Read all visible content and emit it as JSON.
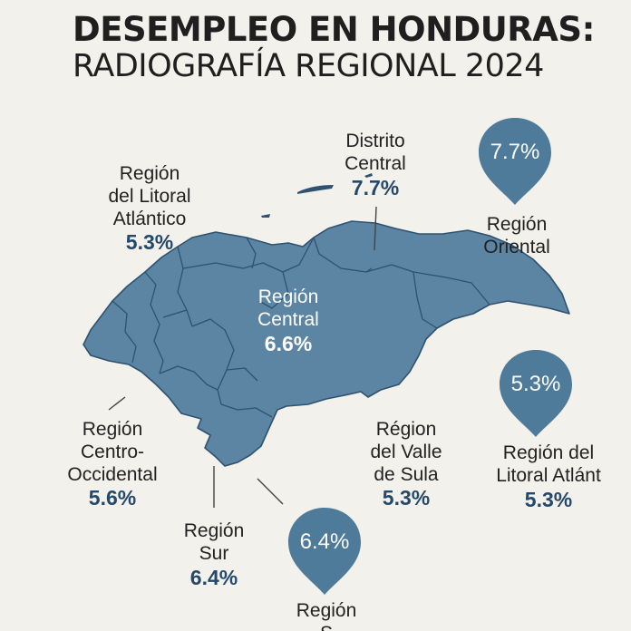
{
  "title": {
    "line1": "DESEMPLEO EN HONDURAS:",
    "line2": "RADIOGRAFÍA REGIONAL 2024"
  },
  "colors": {
    "map_fill": "#5b85a3",
    "map_stroke": "#2f5270",
    "pin": "#4e7b99",
    "value_text": "#24496a",
    "background": "#f3f1ec"
  },
  "regions": {
    "distrito_central": {
      "name_l1": "Distrito",
      "name_l2": "Central",
      "value": "7.7%"
    },
    "litoral_atlantico": {
      "name_l1": "Región",
      "name_l2": "del Litoral",
      "name_l3": "Atlántico",
      "value": "5.3%"
    },
    "central": {
      "name_l1": "Región",
      "name_l2": "Central",
      "value": "6.6%"
    },
    "oriental": {
      "name_l1": "Región",
      "name_l2": "Oriental",
      "pin_value": "7.7%"
    },
    "centro_occidental": {
      "name_l1": "Región",
      "name_l2": "Centro-",
      "name_l3": "Occidental",
      "value": "5.6%"
    },
    "sur": {
      "name_l1": "Región",
      "name_l2": "Sur",
      "value": "6.4%"
    },
    "valle_sula": {
      "name_l1": "Région",
      "name_l2": "del Valle",
      "name_l3": "de Sula",
      "value": "5.3%"
    },
    "litoral_atlantico_2": {
      "name_l1": "Región del",
      "name_l2": "Litoral Atlánt",
      "pin_value": "5.3%",
      "value": "5.3%"
    },
    "bottom_pin": {
      "name_l1": "Región",
      "name_l2": "S",
      "pin_value": "6.4%"
    }
  }
}
